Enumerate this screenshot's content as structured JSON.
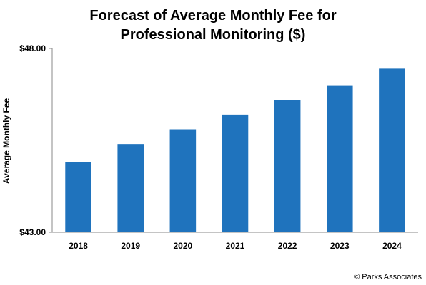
{
  "chart_data": {
    "type": "bar",
    "title_lines": [
      "Forecast of Average Monthly Fee for",
      "Professional Monitoring ($)"
    ],
    "xlabel": "",
    "ylabel": "Average Monthly Fee",
    "categories": [
      "2018",
      "2019",
      "2020",
      "2021",
      "2022",
      "2023",
      "2024"
    ],
    "values": [
      44.9,
      45.4,
      45.8,
      46.2,
      46.6,
      47.0,
      47.45
    ],
    "ylim": [
      43,
      48
    ],
    "yticks": [
      43,
      48
    ],
    "ytick_labels": [
      "$43.00",
      "$48.00"
    ],
    "grid": false,
    "legend": "none",
    "bar_color": "#1f73bd"
  },
  "credit": "© Parks Associates"
}
